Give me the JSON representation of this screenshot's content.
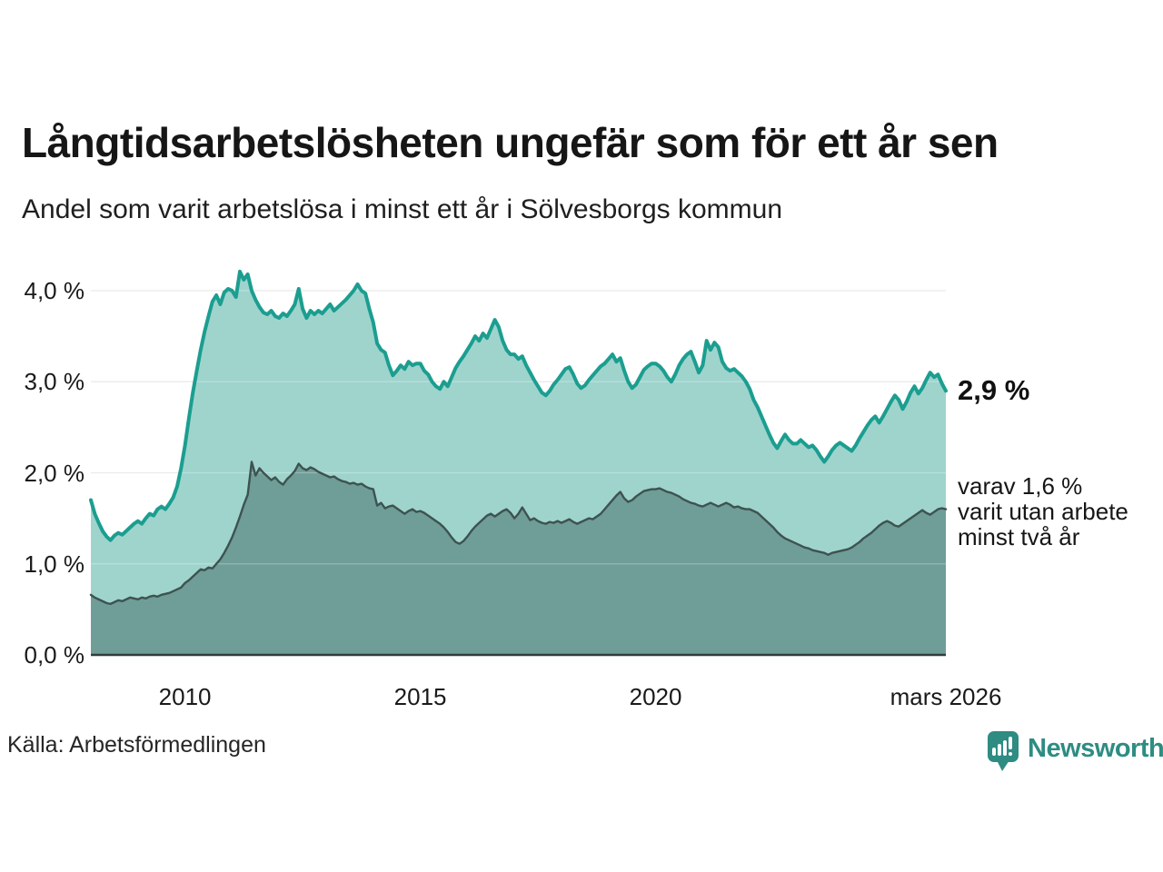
{
  "header": {
    "title": "Långtidsarbetslösheten ungefär som för ett år sen",
    "subtitle": "Andel som varit arbetslösa i minst ett år i Sölvesborgs kommun"
  },
  "annotations": {
    "latest_value": "2,9 %",
    "secondary_line1": "varav 1,6 %",
    "secondary_line2": "varit utan arbete",
    "secondary_line3": "minst två år"
  },
  "source": "Källa: Arbetsförmedlingen",
  "branding": {
    "name": "Newsworthy",
    "icon": "speech-bubble-bar-chart-icon"
  },
  "colors": {
    "line_one_year": "#1b9e90",
    "fill_one_year": "#9fd4cd",
    "line_two_years": "#3d5350",
    "fill_two_years": "#6f9d98",
    "gridline": "#e3e3e3",
    "axis_line": "#2f3e3c",
    "text": "#1a1a1a",
    "brand": "#2e8c83"
  },
  "chart_data": {
    "type": "area",
    "frequency": "monthly",
    "x_start": 2008.0,
    "x_end": 2026.1667,
    "x_start_label": "januari 2008",
    "x_end_label": "mars 2026",
    "ylim": [
      0,
      4.3
    ],
    "grid": true,
    "y_ticks": [
      {
        "label": "0,0 %",
        "value": 0
      },
      {
        "label": "1,0 %",
        "value": 1
      },
      {
        "label": "2,0 %",
        "value": 2
      },
      {
        "label": "3,0 %",
        "value": 3
      },
      {
        "label": "4,0 %",
        "value": 4
      }
    ],
    "x_ticks": [
      {
        "label": "2010",
        "t": 2010.0
      },
      {
        "label": "2015",
        "t": 2015.0
      },
      {
        "label": "2020",
        "t": 2020.0
      },
      {
        "label": "mars 2026",
        "t": 2026.1667
      }
    ],
    "series": [
      {
        "name": "Andel arbetslösa minst ett år",
        "latest_value": 2.9,
        "values": [
          1.7,
          1.55,
          1.45,
          1.36,
          1.3,
          1.26,
          1.31,
          1.34,
          1.32,
          1.36,
          1.4,
          1.44,
          1.47,
          1.44,
          1.5,
          1.55,
          1.53,
          1.6,
          1.63,
          1.6,
          1.66,
          1.73,
          1.85,
          2.05,
          2.3,
          2.6,
          2.88,
          3.12,
          3.35,
          3.55,
          3.72,
          3.88,
          3.95,
          3.85,
          3.98,
          4.02,
          4.0,
          3.93,
          4.21,
          4.12,
          4.18,
          4.0,
          3.9,
          3.82,
          3.76,
          3.74,
          3.78,
          3.72,
          3.7,
          3.75,
          3.72,
          3.78,
          3.85,
          4.02,
          3.8,
          3.7,
          3.78,
          3.74,
          3.78,
          3.75,
          3.8,
          3.85,
          3.78,
          3.82,
          3.86,
          3.9,
          3.95,
          4.0,
          4.07,
          4.0,
          3.97,
          3.8,
          3.65,
          3.42,
          3.35,
          3.32,
          3.18,
          3.07,
          3.12,
          3.18,
          3.14,
          3.22,
          3.18,
          3.2,
          3.2,
          3.12,
          3.08,
          3.0,
          2.95,
          2.92,
          3.0,
          2.95,
          3.05,
          3.15,
          3.22,
          3.28,
          3.35,
          3.42,
          3.5,
          3.45,
          3.53,
          3.48,
          3.58,
          3.68,
          3.6,
          3.45,
          3.35,
          3.3,
          3.3,
          3.25,
          3.28,
          3.18,
          3.1,
          3.02,
          2.95,
          2.88,
          2.85,
          2.9,
          2.97,
          3.02,
          3.08,
          3.14,
          3.16,
          3.08,
          2.98,
          2.93,
          2.96,
          3.02,
          3.07,
          3.12,
          3.17,
          3.2,
          3.25,
          3.3,
          3.22,
          3.26,
          3.12,
          3.0,
          2.93,
          2.97,
          3.05,
          3.13,
          3.17,
          3.2,
          3.2,
          3.17,
          3.12,
          3.05,
          3.0,
          3.08,
          3.18,
          3.25,
          3.3,
          3.33,
          3.22,
          3.1,
          3.18,
          3.45,
          3.35,
          3.43,
          3.38,
          3.22,
          3.15,
          3.12,
          3.14,
          3.1,
          3.06,
          3.0,
          2.92,
          2.8,
          2.72,
          2.62,
          2.52,
          2.42,
          2.33,
          2.27,
          2.35,
          2.42,
          2.36,
          2.32,
          2.32,
          2.36,
          2.32,
          2.28,
          2.3,
          2.25,
          2.18,
          2.12,
          2.18,
          2.25,
          2.3,
          2.33,
          2.3,
          2.27,
          2.24,
          2.3,
          2.38,
          2.45,
          2.52,
          2.58,
          2.62,
          2.55,
          2.62,
          2.7,
          2.78,
          2.85,
          2.8,
          2.7,
          2.78,
          2.88,
          2.95,
          2.87,
          2.93,
          3.02,
          3.1,
          3.05,
          3.08,
          2.98,
          2.9
        ]
      },
      {
        "name": "varav arbetslösa minst två år",
        "latest_value": 1.6,
        "values": [
          0.66,
          0.63,
          0.61,
          0.59,
          0.57,
          0.56,
          0.58,
          0.6,
          0.59,
          0.61,
          0.63,
          0.62,
          0.61,
          0.63,
          0.62,
          0.64,
          0.65,
          0.64,
          0.66,
          0.67,
          0.68,
          0.7,
          0.72,
          0.74,
          0.79,
          0.82,
          0.86,
          0.9,
          0.94,
          0.93,
          0.96,
          0.95,
          1.0,
          1.05,
          1.12,
          1.2,
          1.29,
          1.4,
          1.52,
          1.65,
          1.76,
          2.12,
          1.97,
          2.05,
          2.0,
          1.96,
          1.92,
          1.95,
          1.9,
          1.87,
          1.93,
          1.97,
          2.02,
          2.1,
          2.05,
          2.03,
          2.06,
          2.04,
          2.01,
          1.99,
          1.97,
          1.95,
          1.96,
          1.93,
          1.91,
          1.9,
          1.88,
          1.89,
          1.87,
          1.88,
          1.85,
          1.83,
          1.82,
          1.64,
          1.67,
          1.61,
          1.63,
          1.64,
          1.61,
          1.58,
          1.55,
          1.58,
          1.6,
          1.57,
          1.58,
          1.56,
          1.53,
          1.5,
          1.47,
          1.44,
          1.4,
          1.35,
          1.29,
          1.24,
          1.22,
          1.25,
          1.3,
          1.36,
          1.41,
          1.45,
          1.49,
          1.53,
          1.55,
          1.52,
          1.55,
          1.58,
          1.6,
          1.56,
          1.5,
          1.55,
          1.62,
          1.55,
          1.48,
          1.5,
          1.47,
          1.45,
          1.44,
          1.46,
          1.45,
          1.47,
          1.45,
          1.47,
          1.49,
          1.46,
          1.44,
          1.46,
          1.48,
          1.5,
          1.49,
          1.52,
          1.55,
          1.6,
          1.65,
          1.7,
          1.75,
          1.79,
          1.72,
          1.68,
          1.7,
          1.74,
          1.77,
          1.8,
          1.81,
          1.82,
          1.82,
          1.83,
          1.81,
          1.79,
          1.78,
          1.76,
          1.74,
          1.71,
          1.69,
          1.67,
          1.66,
          1.64,
          1.63,
          1.65,
          1.67,
          1.65,
          1.63,
          1.65,
          1.67,
          1.65,
          1.62,
          1.63,
          1.61,
          1.6,
          1.6,
          1.58,
          1.56,
          1.52,
          1.48,
          1.44,
          1.4,
          1.35,
          1.31,
          1.28,
          1.26,
          1.24,
          1.22,
          1.2,
          1.18,
          1.17,
          1.15,
          1.14,
          1.13,
          1.12,
          1.1,
          1.12,
          1.13,
          1.14,
          1.15,
          1.16,
          1.18,
          1.21,
          1.24,
          1.28,
          1.31,
          1.34,
          1.38,
          1.42,
          1.45,
          1.47,
          1.45,
          1.42,
          1.41,
          1.44,
          1.47,
          1.5,
          1.53,
          1.56,
          1.59,
          1.56,
          1.54,
          1.57,
          1.6,
          1.61,
          1.6
        ]
      }
    ]
  }
}
